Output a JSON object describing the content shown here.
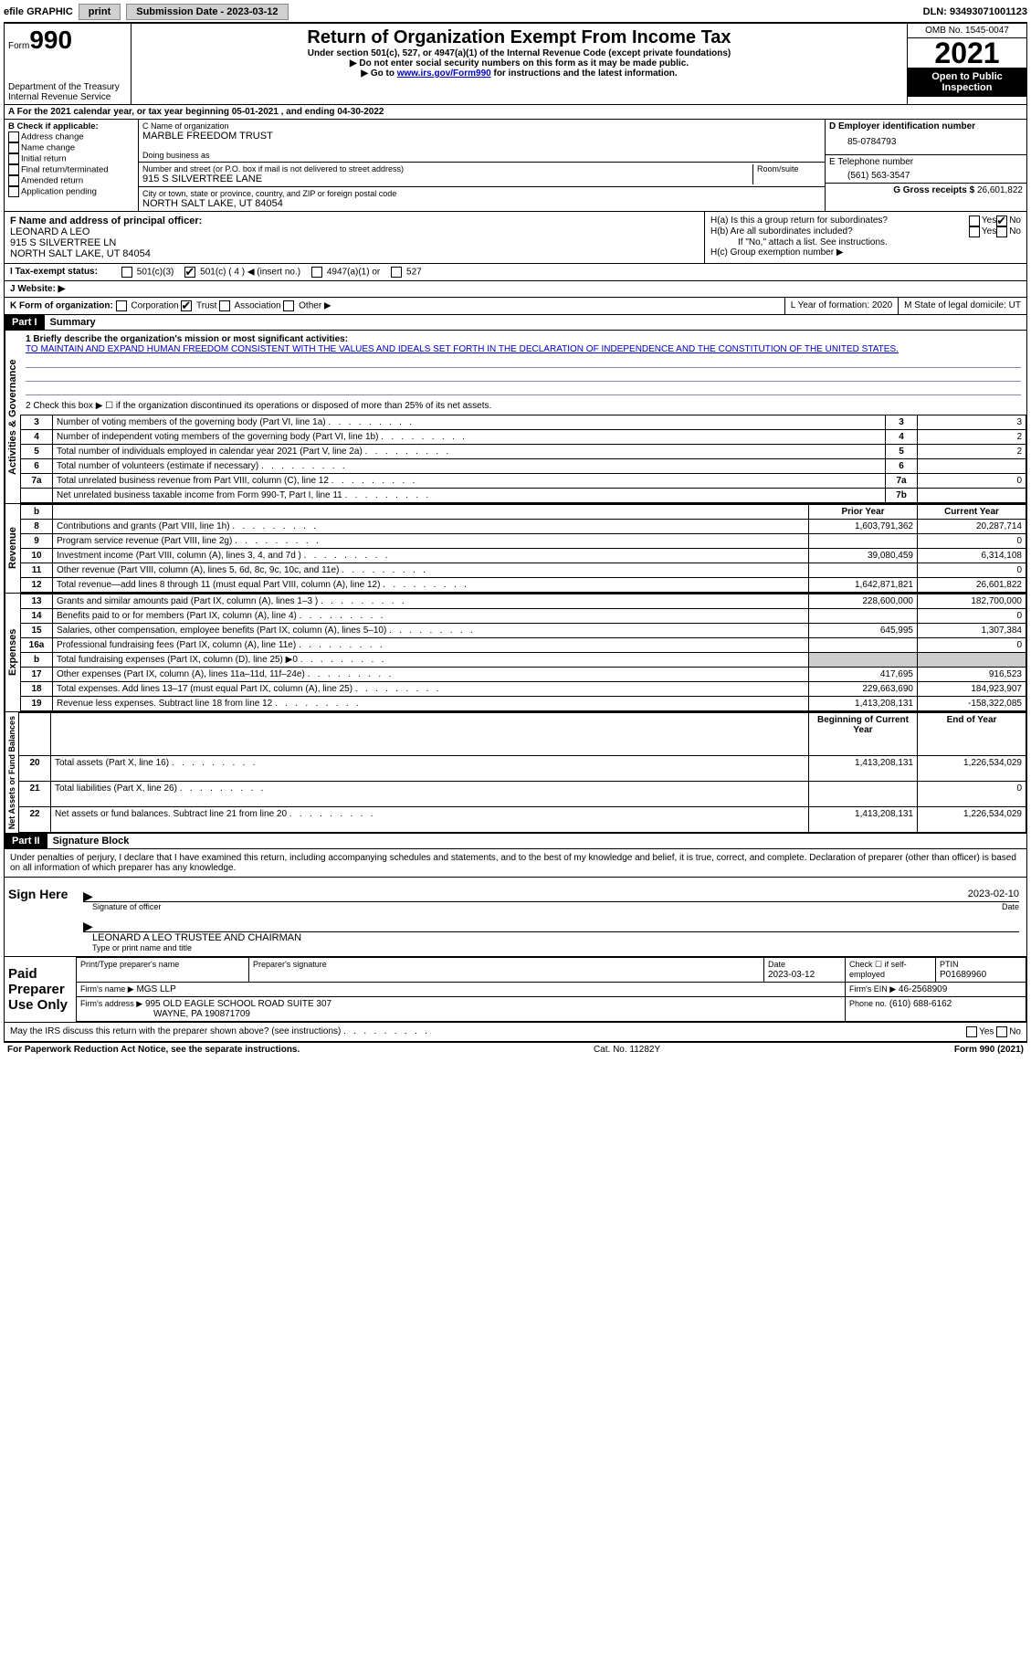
{
  "topbar": {
    "efile_label": "efile GRAPHIC",
    "print_btn": "print",
    "sub_date_label": "Submission Date - 2023-03-12",
    "dln": "DLN: 93493071001123"
  },
  "header": {
    "form_label": "Form",
    "form_num": "990",
    "dept": "Department of the Treasury\nInternal Revenue Service",
    "title": "Return of Organization Exempt From Income Tax",
    "sub1": "Under section 501(c), 527, or 4947(a)(1) of the Internal Revenue Code (except private foundations)",
    "sub2": "▶ Do not enter social security numbers on this form as it may be made public.",
    "sub3_pre": "▶ Go to ",
    "sub3_link": "www.irs.gov/Form990",
    "sub3_post": " for instructions and the latest information.",
    "omb": "OMB No. 1545-0047",
    "year": "2021",
    "otp": "Open to Public Inspection"
  },
  "row_a": "A For the 2021 calendar year, or tax year beginning 05-01-2021   , and ending 04-30-2022",
  "col_b": {
    "header": "B Check if applicable:",
    "opts": [
      "Address change",
      "Name change",
      "Initial return",
      "Final return/terminated",
      "Amended return",
      "Application pending"
    ]
  },
  "col_c": {
    "name_label": "C Name of organization",
    "name": "MARBLE FREEDOM TRUST",
    "dba_label": "Doing business as",
    "addr_label": "Number and street (or P.O. box if mail is not delivered to street address)",
    "room_label": "Room/suite",
    "addr": "915 S SILVERTREE LANE",
    "city_label": "City or town, state or province, country, and ZIP or foreign postal code",
    "city": "NORTH SALT LAKE, UT  84054"
  },
  "col_d": {
    "ein_label": "D Employer identification number",
    "ein": "85-0784793",
    "tel_label": "E Telephone number",
    "tel": "(561) 563-3547",
    "gross_label": "G Gross receipts $ ",
    "gross": "26,601,822"
  },
  "officer": {
    "f_label": "F Name and address of principal officer:",
    "name": "LEONARD A LEO",
    "addr1": "915 S SILVERTREE LN",
    "addr2": "NORTH SALT LAKE, UT  84054"
  },
  "h_section": {
    "ha": "H(a)  Is this a group return for subordinates?",
    "hb": "H(b)  Are all subordinates included?",
    "hb_note": "If \"No,\" attach a list. See instructions.",
    "hc": "H(c)  Group exemption number ▶",
    "yes": "Yes",
    "no": "No"
  },
  "tax": {
    "i_label": "I  Tax-exempt status:",
    "opts": {
      "501c3": "501(c)(3)",
      "501c": "501(c) ( 4 ) ◀ (insert no.)",
      "4947": "4947(a)(1) or",
      "527": "527"
    }
  },
  "website": {
    "j_label": "J  Website: ▶"
  },
  "k_row": {
    "label": "K Form of organization:",
    "opts": {
      "corp": "Corporation",
      "trust": "Trust",
      "assoc": "Association",
      "other": "Other ▶"
    },
    "l": "L Year of formation: 2020",
    "m": "M State of legal domicile: UT"
  },
  "part1": {
    "header": "Part I",
    "title": "Summary"
  },
  "summary": {
    "q1_label": "1  Briefly describe the organization's mission or most significant activities:",
    "q1_text": "TO MAINTAIN AND EXPAND HUMAN FREEDOM CONSISTENT WITH THE VALUES AND IDEALS SET FORTH IN THE DECLARATION OF INDEPENDENCE AND THE CONSTITUTION OF THE UNITED STATES.",
    "q2": "2  Check this box ▶ ☐  if the organization discontinued its operations or disposed of more than 25% of its net assets.",
    "rows_a": [
      {
        "n": "3",
        "t": "Number of voting members of the governing body (Part VI, line 1a)",
        "box": "3",
        "v": "3"
      },
      {
        "n": "4",
        "t": "Number of independent voting members of the governing body (Part VI, line 1b)",
        "box": "4",
        "v": "2"
      },
      {
        "n": "5",
        "t": "Total number of individuals employed in calendar year 2021 (Part V, line 2a)",
        "box": "5",
        "v": "2"
      },
      {
        "n": "6",
        "t": "Total number of volunteers (estimate if necessary)",
        "box": "6",
        "v": ""
      },
      {
        "n": "7a",
        "t": "Total unrelated business revenue from Part VIII, column (C), line 12",
        "box": "7a",
        "v": "0"
      },
      {
        "n": "",
        "t": "Net unrelated business taxable income from Form 990-T, Part I, line 11",
        "box": "7b",
        "v": ""
      }
    ],
    "col_headers": {
      "b": "b",
      "py": "Prior Year",
      "cy": "Current Year"
    },
    "rows_r": [
      {
        "n": "8",
        "t": "Contributions and grants (Part VIII, line 1h)",
        "py": "1,603,791,362",
        "cy": "20,287,714"
      },
      {
        "n": "9",
        "t": "Program service revenue (Part VIII, line 2g)",
        "py": "",
        "cy": "0"
      },
      {
        "n": "10",
        "t": "Investment income (Part VIII, column (A), lines 3, 4, and 7d )",
        "py": "39,080,459",
        "cy": "6,314,108"
      },
      {
        "n": "11",
        "t": "Other revenue (Part VIII, column (A), lines 5, 6d, 8c, 9c, 10c, and 11e)",
        "py": "",
        "cy": "0"
      },
      {
        "n": "12",
        "t": "Total revenue—add lines 8 through 11 (must equal Part VIII, column (A), line 12)",
        "py": "1,642,871,821",
        "cy": "26,601,822"
      }
    ],
    "rows_e": [
      {
        "n": "13",
        "t": "Grants and similar amounts paid (Part IX, column (A), lines 1–3 )",
        "py": "228,600,000",
        "cy": "182,700,000"
      },
      {
        "n": "14",
        "t": "Benefits paid to or for members (Part IX, column (A), line 4)",
        "py": "",
        "cy": "0"
      },
      {
        "n": "15",
        "t": "Salaries, other compensation, employee benefits (Part IX, column (A), lines 5–10)",
        "py": "645,995",
        "cy": "1,307,384"
      },
      {
        "n": "16a",
        "t": "Professional fundraising fees (Part IX, column (A), line 11e)",
        "py": "",
        "cy": "0"
      },
      {
        "n": "b",
        "t": "Total fundraising expenses (Part IX, column (D), line 25) ▶0",
        "py": "shade",
        "cy": "shade"
      },
      {
        "n": "17",
        "t": "Other expenses (Part IX, column (A), lines 11a–11d, 11f–24e)",
        "py": "417,695",
        "cy": "916,523"
      },
      {
        "n": "18",
        "t": "Total expenses. Add lines 13–17 (must equal Part IX, column (A), line 25)",
        "py": "229,663,690",
        "cy": "184,923,907"
      },
      {
        "n": "19",
        "t": "Revenue less expenses. Subtract line 18 from line 12",
        "py": "1,413,208,131",
        "cy": "-158,322,085"
      }
    ],
    "net_headers": {
      "boy": "Beginning of Current Year",
      "eoy": "End of Year"
    },
    "rows_n": [
      {
        "n": "20",
        "t": "Total assets (Part X, line 16)",
        "py": "1,413,208,131",
        "cy": "1,226,534,029"
      },
      {
        "n": "21",
        "t": "Total liabilities (Part X, line 26)",
        "py": "",
        "cy": "0"
      },
      {
        "n": "22",
        "t": "Net assets or fund balances. Subtract line 21 from line 20",
        "py": "1,413,208,131",
        "cy": "1,226,534,029"
      }
    ],
    "side_labels": {
      "ag": "Activities & Governance",
      "rev": "Revenue",
      "exp": "Expenses",
      "net": "Net Assets or Fund Balances"
    }
  },
  "part2": {
    "header": "Part II",
    "title": "Signature Block"
  },
  "sig": {
    "penalty": "Under penalties of perjury, I declare that I have examined this return, including accompanying schedules and statements, and to the best of my knowledge and belief, it is true, correct, and complete. Declaration of preparer (other than officer) is based on all information of which preparer has any knowledge.",
    "sign_here": "Sign Here",
    "sig_officer": "Signature of officer",
    "date1": "2023-02-10",
    "date_label": "Date",
    "name_title": "LEONARD A LEO  TRUSTEE AND CHAIRMAN",
    "type_name": "Type or print name and title",
    "paid": "Paid Preparer Use Only",
    "print_name_label": "Print/Type preparer's name",
    "prep_sig": "Preparer's signature",
    "date2_label": "Date",
    "date2": "2023-03-12",
    "check_if": "Check ☐ if self-employed",
    "ptin_label": "PTIN",
    "ptin": "P01689960",
    "firm_name_label": "Firm's name    ▶",
    "firm_name": "MGS LLP",
    "firm_ein_label": "Firm's EIN ▶",
    "firm_ein": "46-2568909",
    "firm_addr_label": "Firm's address ▶",
    "firm_addr1": "995 OLD EAGLE SCHOOL ROAD SUITE 307",
    "firm_addr2": "WAYNE, PA  190871709",
    "phone_label": "Phone no.",
    "phone": "(610) 688-6162",
    "discuss": "May the IRS discuss this return with the preparer shown above? (see instructions)"
  },
  "footer": {
    "left": "For Paperwork Reduction Act Notice, see the separate instructions.",
    "mid": "Cat. No. 11282Y",
    "right": "Form 990 (2021)"
  }
}
